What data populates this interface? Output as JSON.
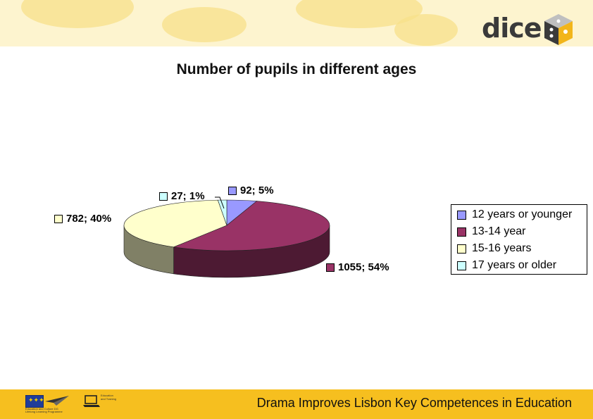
{
  "header": {
    "logo_text": "dice"
  },
  "chart_data": {
    "type": "pie",
    "title": "Number of pupils in different ages",
    "slices": [
      {
        "label": "12 years or younger",
        "value": 92,
        "percent": 5,
        "data_label": "92; 5%",
        "color": "#9999ff"
      },
      {
        "label": "13-14 year",
        "value": 1055,
        "percent": 54,
        "data_label": "1055; 54%",
        "color": "#993366"
      },
      {
        "label": "15-16 years",
        "value": 782,
        "percent": 40,
        "data_label": "782; 40%",
        "color": "#ffffcc"
      },
      {
        "label": "17 years or older",
        "value": 27,
        "percent": 1,
        "data_label": "27; 1%",
        "color": "#ccffff"
      }
    ],
    "legend_position": "right",
    "three_d": true
  },
  "footer": {
    "tagline": "Drama Improves Lisbon Key Competences in Education",
    "eu_caption": "Education and Culture DG Lifelong Learning Programme",
    "partner_caption": "Education and Training"
  }
}
